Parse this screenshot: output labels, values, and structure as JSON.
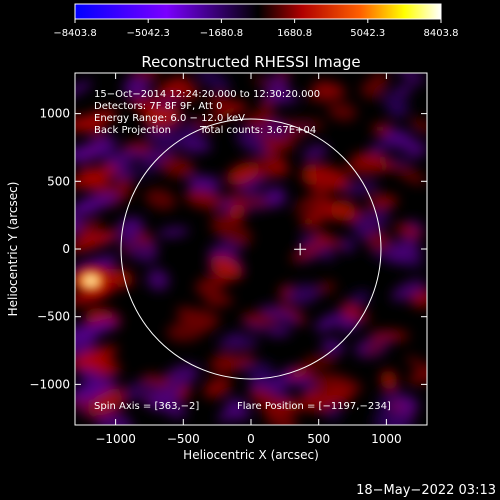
{
  "chart_data": {
    "type": "heatmap",
    "title": "Reconstructed RHESSI Image",
    "xlabel": "Heliocentric X (arcsec)",
    "ylabel": "Heliocentric Y (arcsec)",
    "xlim": [
      -1300,
      1300
    ],
    "ylim": [
      -1300,
      1300
    ],
    "x_ticks": [
      -1000,
      -500,
      0,
      500,
      1000
    ],
    "y_ticks": [
      -1000,
      -500,
      0,
      500,
      1000
    ],
    "x_tick_labels": [
      "−1000",
      "−500",
      "0",
      "500",
      "1000"
    ],
    "y_tick_labels": [
      "−1000",
      "−500",
      "0",
      "500",
      "1000"
    ],
    "colorbar": {
      "min": -8403.8,
      "max": 8403.8,
      "tick_labels": [
        "−8403.8",
        "−5042.3",
        "−1680.8",
        "1680.8",
        "5042.3",
        "8403.8"
      ],
      "tick_values": [
        -8403.8,
        -5042.3,
        -1680.8,
        1680.8,
        5042.3,
        8403.8
      ],
      "colors": [
        "#0000ff",
        "#7a00ff",
        "#000000",
        "#b00000",
        "#ff6000",
        "#ffff00",
        "#ffffff"
      ]
    },
    "annotations": [
      "15−Oct−2014 12:24:20.000 to 12:30:20.000",
      "Detectors: 7F 8F 9F, Att 0",
      "Energy Range: 6.0 − 12.0 keV",
      "Back Projection",
      "Total counts: 3.67E+04"
    ],
    "spin_axis": "Spin Axis = [363,−2]",
    "flare_position": "Flare Position = [−1197,−234]",
    "solar_disk_radius": 960,
    "cross_marker": [
      363,
      -2
    ],
    "hot_spot": [
      -1197,
      -234
    ],
    "footer_date": "18−May−2022 03:13"
  }
}
